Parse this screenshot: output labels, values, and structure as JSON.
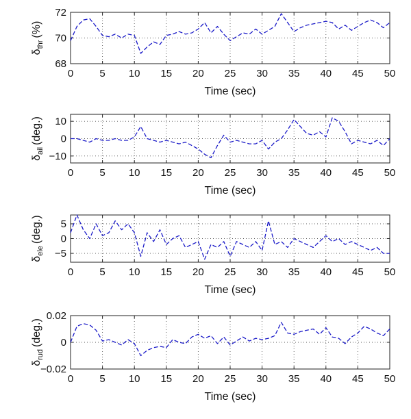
{
  "figure": {
    "line_color": "#1a1ac8",
    "line_style": "dashed",
    "grid": "dotted"
  },
  "chart_data": [
    {
      "type": "line",
      "ylabel_main": "δ",
      "ylabel_sub": "thr",
      "ylabel_unit": "(%)",
      "xlabel": "Time (sec)",
      "xlim": [
        0,
        50
      ],
      "ylim": [
        68,
        72
      ],
      "xticks": [
        "0",
        "5",
        "10",
        "15",
        "20",
        "25",
        "30",
        "35",
        "40",
        "45",
        "50"
      ],
      "yticks": [
        {
          "v": 68,
          "label": "68"
        },
        {
          "v": 70,
          "label": "70"
        },
        {
          "v": 72,
          "label": "72"
        }
      ],
      "grid": true,
      "series": [
        {
          "x": [
            0,
            1,
            2,
            3,
            4,
            5,
            6,
            7,
            8,
            9,
            10,
            11,
            12,
            13,
            14,
            15,
            16,
            17,
            18,
            19,
            20,
            21,
            22,
            23,
            24,
            25,
            26,
            27,
            28,
            29,
            30,
            31,
            32,
            33,
            34,
            35,
            36,
            37,
            38,
            39,
            40,
            41,
            42,
            43,
            44,
            45,
            46,
            47,
            48,
            49,
            50
          ],
          "y": [
            69.8,
            70.9,
            71.4,
            71.5,
            70.9,
            70.2,
            70.1,
            70.3,
            70.0,
            70.3,
            70.2,
            68.8,
            69.3,
            69.7,
            69.5,
            70.2,
            70.3,
            70.5,
            70.3,
            70.4,
            70.7,
            71.2,
            70.4,
            70.9,
            70.3,
            69.8,
            70.1,
            70.4,
            70.3,
            70.7,
            70.3,
            70.6,
            70.9,
            71.9,
            71.2,
            70.5,
            70.8,
            71.0,
            71.1,
            71.2,
            71.3,
            71.2,
            70.7,
            71.0,
            70.6,
            70.9,
            71.2,
            71.4,
            71.2,
            70.8,
            71.2
          ]
        }
      ]
    },
    {
      "type": "line",
      "ylabel_main": "δ",
      "ylabel_sub": "ail",
      "ylabel_unit": "(deg.)",
      "xlabel": "Time (sec)",
      "xlim": [
        0,
        50
      ],
      "ylim": [
        -14,
        14
      ],
      "xticks": [
        "0",
        "5",
        "10",
        "15",
        "20",
        "25",
        "30",
        "35",
        "40",
        "45",
        "50"
      ],
      "yticks": [
        {
          "v": -10,
          "label": "−10"
        },
        {
          "v": 0,
          "label": "0"
        },
        {
          "v": 10,
          "label": "10"
        }
      ],
      "grid": true,
      "series": [
        {
          "x": [
            0,
            1,
            2,
            3,
            4,
            5,
            6,
            7,
            8,
            9,
            10,
            11,
            12,
            13,
            14,
            15,
            16,
            17,
            18,
            19,
            20,
            21,
            22,
            23,
            24,
            25,
            26,
            27,
            28,
            29,
            30,
            31,
            32,
            33,
            34,
            35,
            36,
            37,
            38,
            39,
            40,
            41,
            42,
            43,
            44,
            45,
            46,
            47,
            48,
            49,
            50
          ],
          "y": [
            0,
            0,
            -1,
            -2,
            0,
            -1,
            -1,
            0,
            -1,
            -1,
            1,
            7,
            0,
            -1,
            -2,
            -1,
            -2,
            -3,
            -2,
            -4,
            -6,
            -9,
            -11,
            -4,
            2,
            -2,
            -1,
            -2,
            -3,
            -3,
            -1,
            -6,
            -2,
            0,
            5,
            11,
            7,
            3,
            2,
            4,
            1,
            12,
            10,
            4,
            -3,
            -1,
            -2,
            -3,
            -1,
            -4,
            0
          ]
        }
      ]
    },
    {
      "type": "line",
      "ylabel_main": "δ",
      "ylabel_sub": "ele",
      "ylabel_unit": "(deg.)",
      "xlabel": "Time (sec)",
      "xlim": [
        0,
        50
      ],
      "ylim": [
        -8,
        8
      ],
      "xticks": [
        "0",
        "5",
        "10",
        "15",
        "20",
        "25",
        "30",
        "35",
        "40",
        "45",
        "50"
      ],
      "yticks": [
        {
          "v": -5,
          "label": "−5"
        },
        {
          "v": 0,
          "label": "0"
        },
        {
          "v": 5,
          "label": "5"
        }
      ],
      "grid": true,
      "series": [
        {
          "x": [
            0,
            1,
            2,
            3,
            4,
            5,
            6,
            7,
            8,
            9,
            10,
            11,
            12,
            13,
            14,
            15,
            16,
            17,
            18,
            19,
            20,
            21,
            22,
            23,
            24,
            25,
            26,
            27,
            28,
            29,
            30,
            31,
            32,
            33,
            34,
            35,
            36,
            37,
            38,
            39,
            40,
            41,
            42,
            43,
            44,
            45,
            46,
            47,
            48,
            49,
            50
          ],
          "y": [
            2,
            8,
            3,
            0,
            5,
            1,
            2,
            6,
            3,
            5,
            2,
            -6,
            2,
            -1,
            3,
            -2,
            0,
            1,
            -3,
            -2,
            -1,
            -7,
            -2,
            -3,
            -1,
            -6,
            -1,
            -2,
            -3,
            -1,
            -4,
            6,
            -2,
            -1,
            -3,
            0,
            -1,
            -2,
            -3,
            -1,
            1,
            -1,
            0,
            -2,
            -1,
            -2,
            -3,
            -4,
            -3,
            -5,
            -5
          ]
        }
      ]
    },
    {
      "type": "line",
      "ylabel_main": "δ",
      "ylabel_sub": "rud",
      "ylabel_unit": "(deg.)",
      "xlabel": "Time (sec)",
      "xlim": [
        0,
        50
      ],
      "ylim": [
        -0.02,
        0.02
      ],
      "xticks": [
        "0",
        "5",
        "10",
        "15",
        "20",
        "25",
        "30",
        "35",
        "40",
        "45",
        "50"
      ],
      "yticks": [
        {
          "v": -0.02,
          "label": "−0.02"
        },
        {
          "v": 0,
          "label": "0"
        },
        {
          "v": 0.02,
          "label": "0.02"
        }
      ],
      "grid": true,
      "series": [
        {
          "x": [
            0,
            1,
            2,
            3,
            4,
            5,
            6,
            7,
            8,
            9,
            10,
            11,
            12,
            13,
            14,
            15,
            16,
            17,
            18,
            19,
            20,
            21,
            22,
            23,
            24,
            25,
            26,
            27,
            28,
            29,
            30,
            31,
            32,
            33,
            34,
            35,
            36,
            37,
            38,
            39,
            40,
            41,
            42,
            43,
            44,
            45,
            46,
            47,
            48,
            49,
            50
          ],
          "y": [
            0,
            0.012,
            0.014,
            0.013,
            0.009,
            0.001,
            0.002,
            0,
            -0.002,
            0.002,
            -0.001,
            -0.01,
            -0.006,
            -0.004,
            -0.003,
            -0.004,
            0.002,
            0,
            -0.001,
            0.004,
            0.006,
            0.003,
            0.005,
            -0.001,
            0.004,
            -0.002,
            0.001,
            0.004,
            0.001,
            0.003,
            0.002,
            0.003,
            0.005,
            0.015,
            0.007,
            0.006,
            0.008,
            0.009,
            0.01,
            0.006,
            0.011,
            0.004,
            0.003,
            -0.001,
            0.004,
            0.007,
            0.012,
            0.01,
            0.007,
            0.005,
            0.01
          ]
        }
      ]
    }
  ]
}
